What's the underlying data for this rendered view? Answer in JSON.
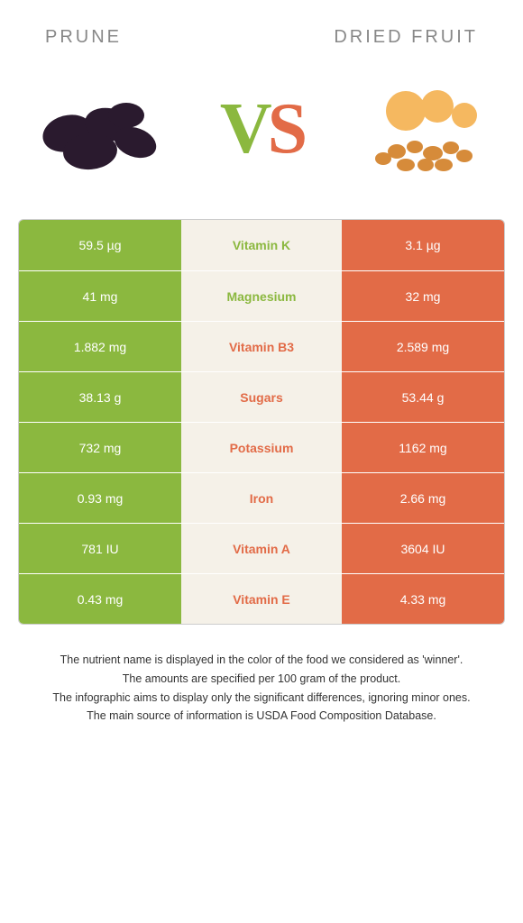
{
  "left_title": "PRUNE",
  "right_title": "DRIED FRUIT",
  "colors": {
    "left": "#8bb83f",
    "right": "#e26b47",
    "mid_bg": "#f5f1e8"
  },
  "rows": [
    {
      "label": "Vitamin K",
      "left": "59.5 µg",
      "right": "3.1 µg",
      "winner": "left"
    },
    {
      "label": "Magnesium",
      "left": "41 mg",
      "right": "32 mg",
      "winner": "left"
    },
    {
      "label": "Vitamin B3",
      "left": "1.882 mg",
      "right": "2.589 mg",
      "winner": "right"
    },
    {
      "label": "Sugars",
      "left": "38.13 g",
      "right": "53.44 g",
      "winner": "right"
    },
    {
      "label": "Potassium",
      "left": "732 mg",
      "right": "1162 mg",
      "winner": "right"
    },
    {
      "label": "Iron",
      "left": "0.93 mg",
      "right": "2.66 mg",
      "winner": "right"
    },
    {
      "label": "Vitamin A",
      "left": "781 IU",
      "right": "3604 IU",
      "winner": "right"
    },
    {
      "label": "Vitamin E",
      "left": "0.43 mg",
      "right": "4.33 mg",
      "winner": "right"
    }
  ],
  "footer": [
    "The nutrient name is displayed in the color of the food we considered as 'winner'.",
    "The amounts are specified per 100 gram of the product.",
    "The infographic aims to display only the significant differences, ignoring minor ones.",
    "The main source of information is USDA Food Composition Database."
  ]
}
